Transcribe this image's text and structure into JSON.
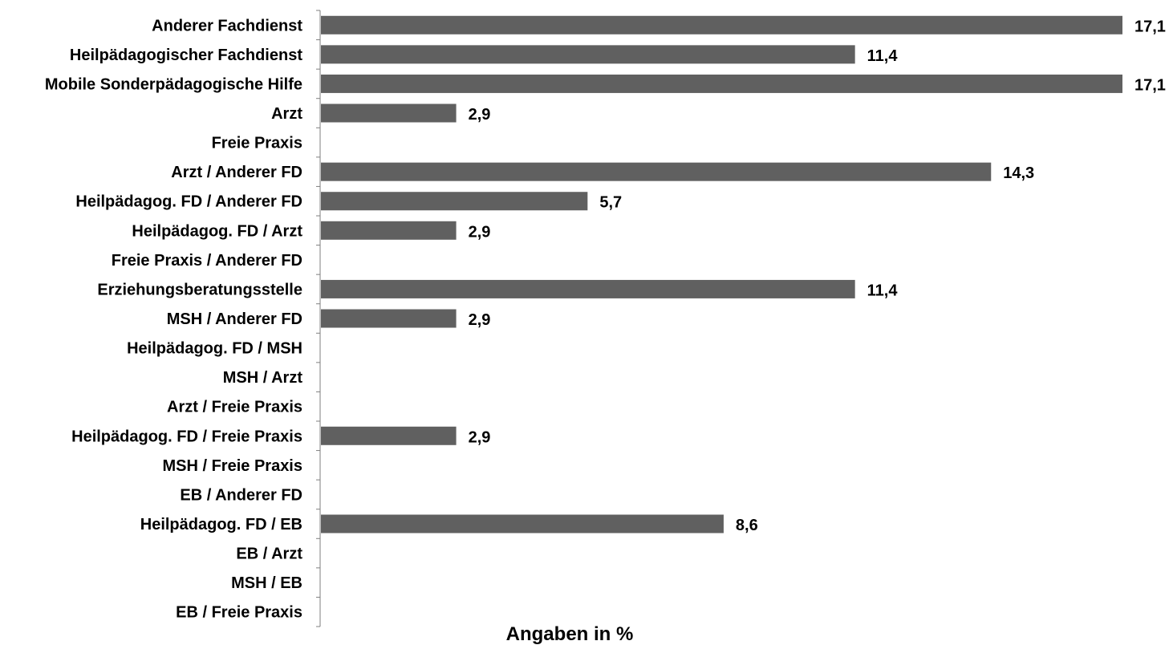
{
  "chart_data": {
    "type": "bar",
    "orientation": "horizontal",
    "categories": [
      "Anderer Fachdienst",
      "Heilpädagogischer Fachdienst",
      "Mobile Sonderpädagogische Hilfe",
      "Arzt",
      "Freie Praxis",
      "Arzt  / Anderer FD",
      "Heilpädagog. FD / Anderer FD",
      "Heilpädagog. FD / Arzt",
      "Freie Praxis / Anderer FD",
      "Erziehungsberatungsstelle",
      "MSH / Anderer FD",
      "Heilpädagog. FD / MSH",
      "MSH / Arzt",
      "Arzt / Freie Praxis",
      "Heilpädagog. FD / Freie Praxis",
      "MSH / Freie Praxis",
      "EB / Anderer FD",
      "Heilpädagog. FD / EB",
      "EB / Arzt",
      "MSH / EB",
      "EB / Freie Praxis"
    ],
    "values": [
      17.1,
      11.4,
      17.1,
      2.9,
      null,
      14.3,
      5.7,
      2.9,
      null,
      11.4,
      2.9,
      null,
      null,
      null,
      2.9,
      null,
      null,
      8.6,
      null,
      null,
      null
    ],
    "data_labels": [
      "17,1",
      "11,4",
      "17,1",
      "2,9",
      "",
      "14,3",
      "5,7",
      "2,9",
      "",
      "11,4",
      "2,9",
      "",
      "",
      "",
      "2,9",
      "",
      "",
      "8,6",
      "",
      "",
      ""
    ],
    "title": "",
    "xlabel": "Angaben in %",
    "ylabel": "",
    "xlim": [
      0,
      17.1
    ],
    "grid": false,
    "legend": "none",
    "bar_color": "#606060",
    "axis_color": "#7f7f7f"
  }
}
